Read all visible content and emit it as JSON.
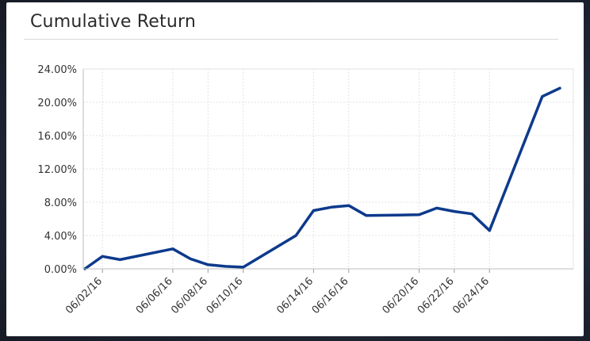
{
  "chart_data": {
    "type": "line",
    "title": "Cumulative Return",
    "xlabel": "",
    "ylabel": "",
    "ylim": [
      0,
      24
    ],
    "y_ticks": [
      "0.00%",
      "4.00%",
      "8.00%",
      "12.00%",
      "16.00%",
      "20.00%",
      "24.00%"
    ],
    "x_ticks": [
      "06/02/16",
      "06/06/16",
      "06/08/16",
      "06/10/16",
      "06/14/16",
      "06/16/16",
      "06/20/16",
      "06/22/16",
      "06/24/16"
    ],
    "grid": true,
    "series": [
      {
        "color": "#0d3a8c",
        "points": [
          {
            "x": "06/01/16",
            "y": 0.0
          },
          {
            "x": "06/02/16",
            "y": 1.5
          },
          {
            "x": "06/03/16",
            "y": 1.1
          },
          {
            "x": "06/06/16",
            "y": 2.4
          },
          {
            "x": "06/07/16",
            "y": 1.2
          },
          {
            "x": "06/08/16",
            "y": 0.5
          },
          {
            "x": "06/09/16",
            "y": 0.3
          },
          {
            "x": "06/10/16",
            "y": 0.2
          },
          {
            "x": "06/13/16",
            "y": 4.0
          },
          {
            "x": "06/14/16",
            "y": 7.0
          },
          {
            "x": "06/15/16",
            "y": 7.4
          },
          {
            "x": "06/16/16",
            "y": 7.6
          },
          {
            "x": "06/17/16",
            "y": 6.4
          },
          {
            "x": "06/20/16",
            "y": 6.5
          },
          {
            "x": "06/21/16",
            "y": 7.3
          },
          {
            "x": "06/22/16",
            "y": 6.9
          },
          {
            "x": "06/23/16",
            "y": 6.6
          },
          {
            "x": "06/24/16",
            "y": 4.6
          },
          {
            "x": "06/27/16",
            "y": 20.7
          },
          {
            "x": "06/28/16",
            "y": 21.7
          }
        ]
      }
    ]
  }
}
